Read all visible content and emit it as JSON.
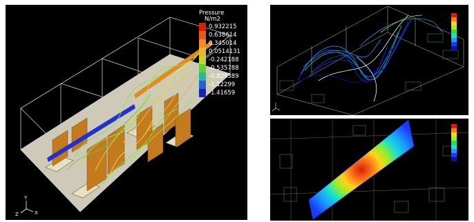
{
  "main_panel": {
    "legend": {
      "title": "Pressure",
      "units": "N/m2",
      "values": [
        "0.932215",
        "0.638614",
        "0.345014",
        "0.0514131",
        "-0.242188",
        "-0.535788",
        "-0.829389",
        "-1.12299",
        "-1.41659"
      ],
      "colors": [
        "#d81e05",
        "#e85a18",
        "#f08a2a",
        "#e8b829",
        "#bcd53a",
        "#5fcf3c",
        "#27b3a6",
        "#2b5fd9",
        "#1a22b8"
      ]
    },
    "axes": {
      "y": "Y",
      "z": "Z",
      "x": "X"
    }
  },
  "top_right_panel": {
    "legend_colors": [
      "#d81e05",
      "#ff7a1a",
      "#ffd31a",
      "#9bef22",
      "#22e05a",
      "#1ae0d0",
      "#1a9bff",
      "#1a3aff",
      "#1010b0"
    ]
  },
  "bottom_right_panel": {
    "legend_colors": [
      "#d81e05",
      "#ff7a1a",
      "#ffd31a",
      "#9bef22",
      "#22e05a",
      "#1ae0d0",
      "#1a9bff",
      "#1a3aff",
      "#1010b0"
    ]
  },
  "colors": {
    "background": "#000000",
    "floor": "#cfc9b8",
    "partition": "#c47a1e",
    "duct": "#2230d0",
    "streamline_green": "#7ee83a",
    "streamline_yellow": "#e8e04a",
    "wire": "#d0d0d0"
  }
}
